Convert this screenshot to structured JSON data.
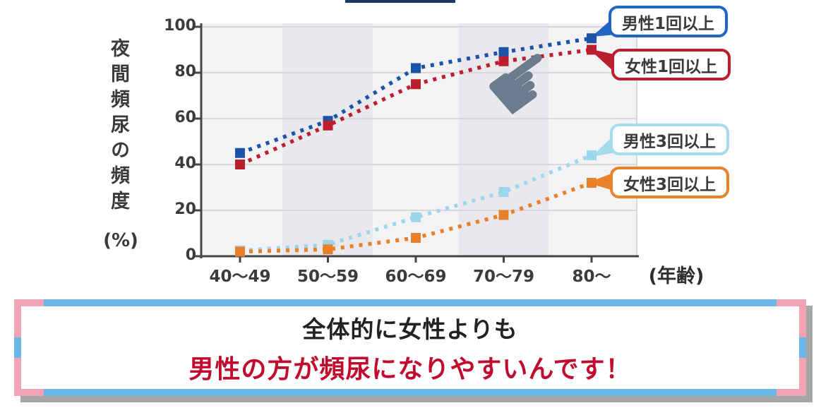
{
  "palette": {
    "navy_top_bar": "#1d3a66",
    "plot_bg": "#f3f3f6",
    "band": "#e8e8ed",
    "grid": "#d7d7dc",
    "axis": "#454547",
    "ink": "#222222",
    "hand": "#6b7c8e",
    "banner_blue": "#6bb8e8",
    "banner_pink": "#f2a3b8",
    "banner_red": "#c00a2e"
  },
  "chart": {
    "ylabel": "夜間頻尿の頻度",
    "ylabel_unit": "(%)",
    "xlabel_unit": "(年齢)",
    "y_ticks": [
      0,
      20,
      40,
      60,
      80,
      100
    ]
  },
  "chart_data": {
    "type": "line",
    "title": "",
    "categories": [
      "40〜49",
      "50〜59",
      "60〜69",
      "70〜79",
      "80〜"
    ],
    "series": [
      {
        "name": "男性1回以上",
        "values": [
          45,
          59,
          82,
          89,
          95
        ],
        "color": "#1b53a6",
        "legend_border": "#2166c4",
        "line_style": "dotted"
      },
      {
        "name": "女性1回以上",
        "values": [
          40,
          57,
          75,
          85,
          90
        ],
        "color": "#bb1e2c",
        "legend_border": "#bb1e2c",
        "line_style": "dotted"
      },
      {
        "name": "男性3回以上",
        "values": [
          2.5,
          5,
          17,
          28,
          44
        ],
        "color": "#9bd6ea",
        "legend_border": "#a5dcec",
        "line_style": "dotted"
      },
      {
        "name": "女性3回以上",
        "values": [
          2,
          3,
          8,
          18,
          32
        ],
        "color": "#e8802a",
        "legend_border": "#e8832c",
        "line_style": "dotted"
      }
    ],
    "xlabel": "(年齢)",
    "ylabel": "夜間頻尿の頻度(%)",
    "ylim": [
      0,
      100
    ],
    "grid": true,
    "legend_position": "right-callouts",
    "marker": "square"
  },
  "legend": {
    "items": [
      {
        "label": "男性1回以上"
      },
      {
        "label": "女性1回以上"
      },
      {
        "label": "男性3回以上"
      },
      {
        "label": "女性3回以上"
      }
    ]
  },
  "icons": {
    "hand_pointer": "☛"
  },
  "banner": {
    "line1": "全体的に女性よりも",
    "line2": "男性の方が頻尿になりやすいんです！"
  }
}
